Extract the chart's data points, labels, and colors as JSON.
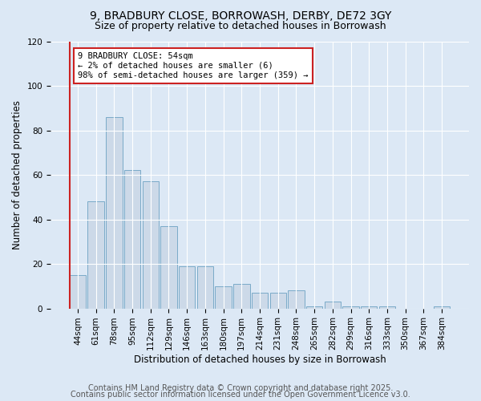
{
  "title1": "9, BRADBURY CLOSE, BORROWASH, DERBY, DE72 3GY",
  "title2": "Size of property relative to detached houses in Borrowash",
  "xlabel": "Distribution of detached houses by size in Borrowash",
  "ylabel": "Number of detached properties",
  "categories": [
    "44sqm",
    "61sqm",
    "78sqm",
    "95sqm",
    "112sqm",
    "129sqm",
    "146sqm",
    "163sqm",
    "180sqm",
    "197sqm",
    "214sqm",
    "231sqm",
    "248sqm",
    "265sqm",
    "282sqm",
    "299sqm",
    "316sqm",
    "333sqm",
    "350sqm",
    "367sqm",
    "384sqm"
  ],
  "values": [
    15,
    48,
    86,
    62,
    57,
    37,
    19,
    19,
    10,
    11,
    7,
    7,
    8,
    1,
    3,
    1,
    1,
    1,
    0,
    0,
    1
  ],
  "bar_color": "#ccd9e8",
  "bar_edge_color": "#7aaac8",
  "vline_color": "#cc2222",
  "annotation_text": "9 BRADBURY CLOSE: 54sqm\n← 2% of detached houses are smaller (6)\n98% of semi-detached houses are larger (359) →",
  "annotation_box_color": "#ffffff",
  "annotation_box_edge": "#cc2222",
  "ylim": [
    0,
    120
  ],
  "yticks": [
    0,
    20,
    40,
    60,
    80,
    100,
    120
  ],
  "footer1": "Contains HM Land Registry data © Crown copyright and database right 2025.",
  "footer2": "Contains public sector information licensed under the Open Government Licence v3.0.",
  "bg_color": "#dce8f5",
  "plot_bg_color": "#dce8f5",
  "title1_fontsize": 10,
  "title2_fontsize": 9,
  "xlabel_fontsize": 8.5,
  "ylabel_fontsize": 8.5,
  "tick_fontsize": 7.5,
  "footer_fontsize": 7,
  "annot_fontsize": 7.5
}
